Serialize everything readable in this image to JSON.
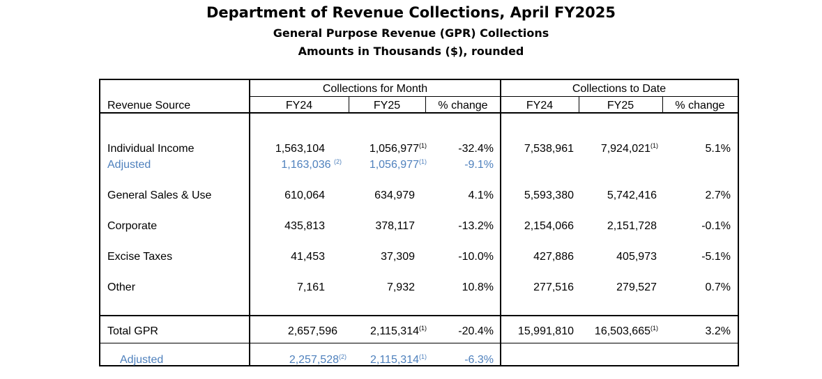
{
  "title": "Department of Revenue Collections, April FY2025",
  "subtitle": "General Purpose Revenue (GPR) Collections",
  "units": "Amounts in Thousands ($), rounded",
  "header": {
    "revenue_source": "Revenue Source",
    "month_group": "Collections for Month",
    "todate_group": "Collections to Date",
    "fy24": "FY24",
    "fy25": "FY25",
    "pct": "% change"
  },
  "rows": [
    {
      "label": "Individual Income",
      "m24": "1,563,104",
      "m25": "1,056,977",
      "m25_note": "(1)",
      "mpct": "-32.4%",
      "d24": "7,538,961",
      "d25": "7,924,021",
      "d25_note": "(1)",
      "dpct": "5.1%"
    },
    {
      "label": "Adjusted",
      "m24": "1,163,036 ",
      "m24_note": "(2)",
      "m25": "1,056,977",
      "m25_note": "(1)",
      "mpct": "-9.1%"
    },
    {
      "label": "General Sales & Use",
      "m24": "610,064",
      "m25": "634,979",
      "mpct": "4.1%",
      "d24": "5,593,380",
      "d25": "5,742,416",
      "dpct": "2.7%"
    },
    {
      "label": "Corporate",
      "m24": "435,813",
      "m25": "378,117",
      "mpct": "-13.2%",
      "d24": "2,154,066",
      "d25": "2,151,728",
      "dpct": "-0.1%"
    },
    {
      "label": "Excise Taxes",
      "m24": "41,453",
      "m25": "37,309",
      "mpct": "-10.0%",
      "d24": "427,886",
      "d25": "405,973",
      "dpct": "-5.1%"
    },
    {
      "label": "Other",
      "m24": "7,161",
      "m25": "7,932",
      "mpct": "10.8%",
      "d24": "277,516",
      "d25": "279,527",
      "dpct": "0.7%"
    },
    {
      "label": "Total GPR",
      "m24": "2,657,596",
      "m25": "2,115,314",
      "m25_note": "(1)",
      "mpct": "-20.4%",
      "d24": "15,991,810",
      "d25": "16,503,665",
      "d25_note": "(1)",
      "dpct": "3.2%"
    },
    {
      "label": "Adjusted",
      "m24": "2,257,528",
      "m24_note": "(2)",
      "m25": "2,115,314",
      "m25_note": "(1)",
      "mpct": "-6.3%"
    }
  ],
  "colors": {
    "adjusted": "#4f81bd"
  }
}
